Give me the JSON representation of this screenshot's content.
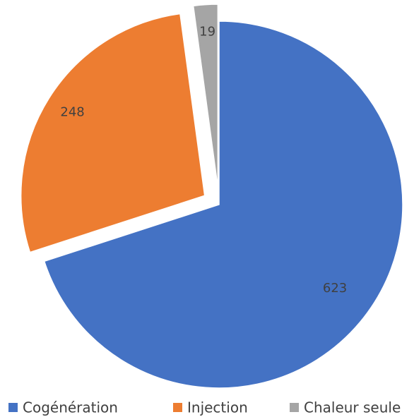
{
  "chart_data": {
    "type": "pie",
    "categories": [
      "Cogénération",
      "Injection",
      "Chaleur seule"
    ],
    "values": [
      623,
      248,
      19
    ],
    "colors": [
      "#4472c4",
      "#ed7d31",
      "#a5a5a5"
    ],
    "exploded": [
      false,
      true,
      true
    ],
    "legend": "bottom"
  }
}
